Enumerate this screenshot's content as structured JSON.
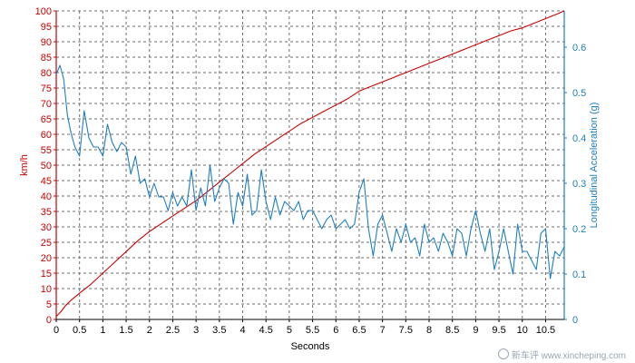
{
  "chart_data": {
    "type": "line",
    "xlabel": "Seconds",
    "ylabel_left": "km/h",
    "ylabel_right": "Longitudinal Acceleration (g)",
    "xlim": [
      0,
      10.9
    ],
    "ylim_left": [
      0,
      100
    ],
    "ylim_right": [
      0,
      0.68
    ],
    "x_ticks": [
      "0",
      "0.5",
      "1",
      "1.5",
      "2",
      "2.5",
      "3",
      "3.5",
      "4",
      "4.5",
      "5",
      "5.5",
      "6",
      "6.5",
      "7",
      "7.5",
      "8",
      "8.5",
      "9",
      "9.5",
      "10",
      "10.5"
    ],
    "y_left_ticks": [
      "0",
      "5",
      "10",
      "15",
      "20",
      "25",
      "30",
      "35",
      "40",
      "45",
      "50",
      "55",
      "60",
      "65",
      "70",
      "75",
      "80",
      "85",
      "90",
      "95",
      "100"
    ],
    "y_right_ticks": [
      "0",
      "0.1",
      "0.2",
      "0.3",
      "0.4",
      "0.5",
      "0.6"
    ],
    "grid": true,
    "series": [
      {
        "name": "km/h",
        "axis": "left",
        "color": "#cc0000",
        "x": [
          0,
          0.1,
          0.2,
          0.3,
          0.5,
          0.75,
          1.0,
          1.25,
          1.5,
          1.75,
          2.0,
          2.25,
          2.5,
          2.75,
          3.0,
          3.25,
          3.5,
          3.75,
          4.0,
          4.25,
          4.5,
          4.75,
          5.0,
          5.25,
          5.5,
          5.75,
          6.0,
          6.25,
          6.5,
          6.75,
          7.0,
          7.25,
          7.5,
          7.75,
          8.0,
          8.25,
          8.5,
          8.75,
          9.0,
          9.25,
          9.5,
          9.75,
          10.0,
          10.25,
          10.5,
          10.75,
          10.9
        ],
        "values": [
          1,
          2.5,
          4.5,
          6,
          8.5,
          11.5,
          15,
          18.5,
          22,
          25.5,
          28.5,
          31,
          33.5,
          36,
          38.5,
          41.5,
          44.5,
          47.5,
          50.5,
          53.5,
          56,
          58.5,
          61,
          63.5,
          65.5,
          67.5,
          69.5,
          71.5,
          74,
          75.5,
          77,
          78.5,
          80,
          81.5,
          83,
          84.5,
          86,
          87.5,
          89,
          90.5,
          92,
          93.5,
          94.5,
          96,
          97.5,
          99,
          100
        ]
      },
      {
        "name": "Longitudinal Acceleration (g)",
        "axis": "right",
        "color": "#1f7fbf",
        "x": [
          0.0,
          0.08,
          0.16,
          0.24,
          0.32,
          0.4,
          0.5,
          0.6,
          0.7,
          0.8,
          0.9,
          1.0,
          1.1,
          1.2,
          1.3,
          1.4,
          1.5,
          1.6,
          1.7,
          1.8,
          1.9,
          2.0,
          2.1,
          2.2,
          2.3,
          2.4,
          2.5,
          2.6,
          2.7,
          2.8,
          2.9,
          3.0,
          3.1,
          3.2,
          3.3,
          3.4,
          3.5,
          3.6,
          3.7,
          3.8,
          3.9,
          4.0,
          4.1,
          4.2,
          4.3,
          4.4,
          4.5,
          4.6,
          4.7,
          4.8,
          4.9,
          5.0,
          5.1,
          5.2,
          5.3,
          5.4,
          5.5,
          5.6,
          5.7,
          5.8,
          5.9,
          6.0,
          6.1,
          6.2,
          6.3,
          6.4,
          6.5,
          6.6,
          6.7,
          6.8,
          6.9,
          7.0,
          7.1,
          7.2,
          7.3,
          7.4,
          7.5,
          7.6,
          7.7,
          7.8,
          7.9,
          8.0,
          8.1,
          8.2,
          8.3,
          8.4,
          8.5,
          8.6,
          8.7,
          8.8,
          8.9,
          9.0,
          9.1,
          9.2,
          9.3,
          9.4,
          9.5,
          9.6,
          9.7,
          9.8,
          9.9,
          10.0,
          10.1,
          10.2,
          10.3,
          10.4,
          10.5,
          10.6,
          10.7,
          10.8,
          10.9
        ],
        "values": [
          0.54,
          0.56,
          0.53,
          0.45,
          0.41,
          0.38,
          0.36,
          0.46,
          0.4,
          0.38,
          0.38,
          0.36,
          0.43,
          0.39,
          0.37,
          0.39,
          0.38,
          0.32,
          0.36,
          0.3,
          0.31,
          0.27,
          0.3,
          0.27,
          0.27,
          0.24,
          0.28,
          0.25,
          0.27,
          0.25,
          0.33,
          0.24,
          0.29,
          0.25,
          0.34,
          0.26,
          0.29,
          0.31,
          0.3,
          0.21,
          0.28,
          0.25,
          0.32,
          0.23,
          0.24,
          0.33,
          0.26,
          0.22,
          0.27,
          0.23,
          0.26,
          0.25,
          0.24,
          0.26,
          0.22,
          0.24,
          0.24,
          0.22,
          0.2,
          0.22,
          0.23,
          0.2,
          0.21,
          0.22,
          0.2,
          0.21,
          0.28,
          0.31,
          0.2,
          0.14,
          0.21,
          0.23,
          0.19,
          0.15,
          0.2,
          0.17,
          0.21,
          0.17,
          0.18,
          0.14,
          0.21,
          0.17,
          0.18,
          0.15,
          0.19,
          0.17,
          0.14,
          0.2,
          0.19,
          0.14,
          0.2,
          0.24,
          0.19,
          0.15,
          0.2,
          0.11,
          0.15,
          0.2,
          0.15,
          0.1,
          0.21,
          0.15,
          0.15,
          0.13,
          0.11,
          0.19,
          0.2,
          0.09,
          0.15,
          0.14,
          0.16
        ]
      }
    ]
  },
  "watermark": {
    "text": "新车评 www.xincheping.com"
  }
}
